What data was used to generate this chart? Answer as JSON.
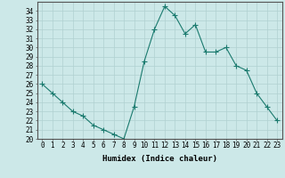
{
  "xlabel": "Humidex (Indice chaleur)",
  "x": [
    0,
    1,
    2,
    3,
    4,
    5,
    6,
    7,
    8,
    9,
    10,
    11,
    12,
    13,
    14,
    15,
    16,
    17,
    18,
    19,
    20,
    21,
    22,
    23
  ],
  "y": [
    26,
    25,
    24,
    23,
    22.5,
    21.5,
    21,
    20.5,
    20,
    23.5,
    28.5,
    32,
    34.5,
    33.5,
    31.5,
    32.5,
    29.5,
    29.5,
    30,
    28,
    27.5,
    25,
    23.5,
    22
  ],
  "line_color": "#1a7a6e",
  "marker": "+",
  "marker_size": 4.0,
  "linewidth": 0.8,
  "ylim": [
    20,
    35
  ],
  "yticks": [
    20,
    21,
    22,
    23,
    24,
    25,
    26,
    27,
    28,
    29,
    30,
    31,
    32,
    33,
    34
  ],
  "xticks": [
    0,
    1,
    2,
    3,
    4,
    5,
    6,
    7,
    8,
    9,
    10,
    11,
    12,
    13,
    14,
    15,
    16,
    17,
    18,
    19,
    20,
    21,
    22,
    23
  ],
  "bg_color": "#cce8e8",
  "grid_color": "#b0d0d0",
  "tick_fontsize": 5.5,
  "xlabel_fontsize": 6.5
}
